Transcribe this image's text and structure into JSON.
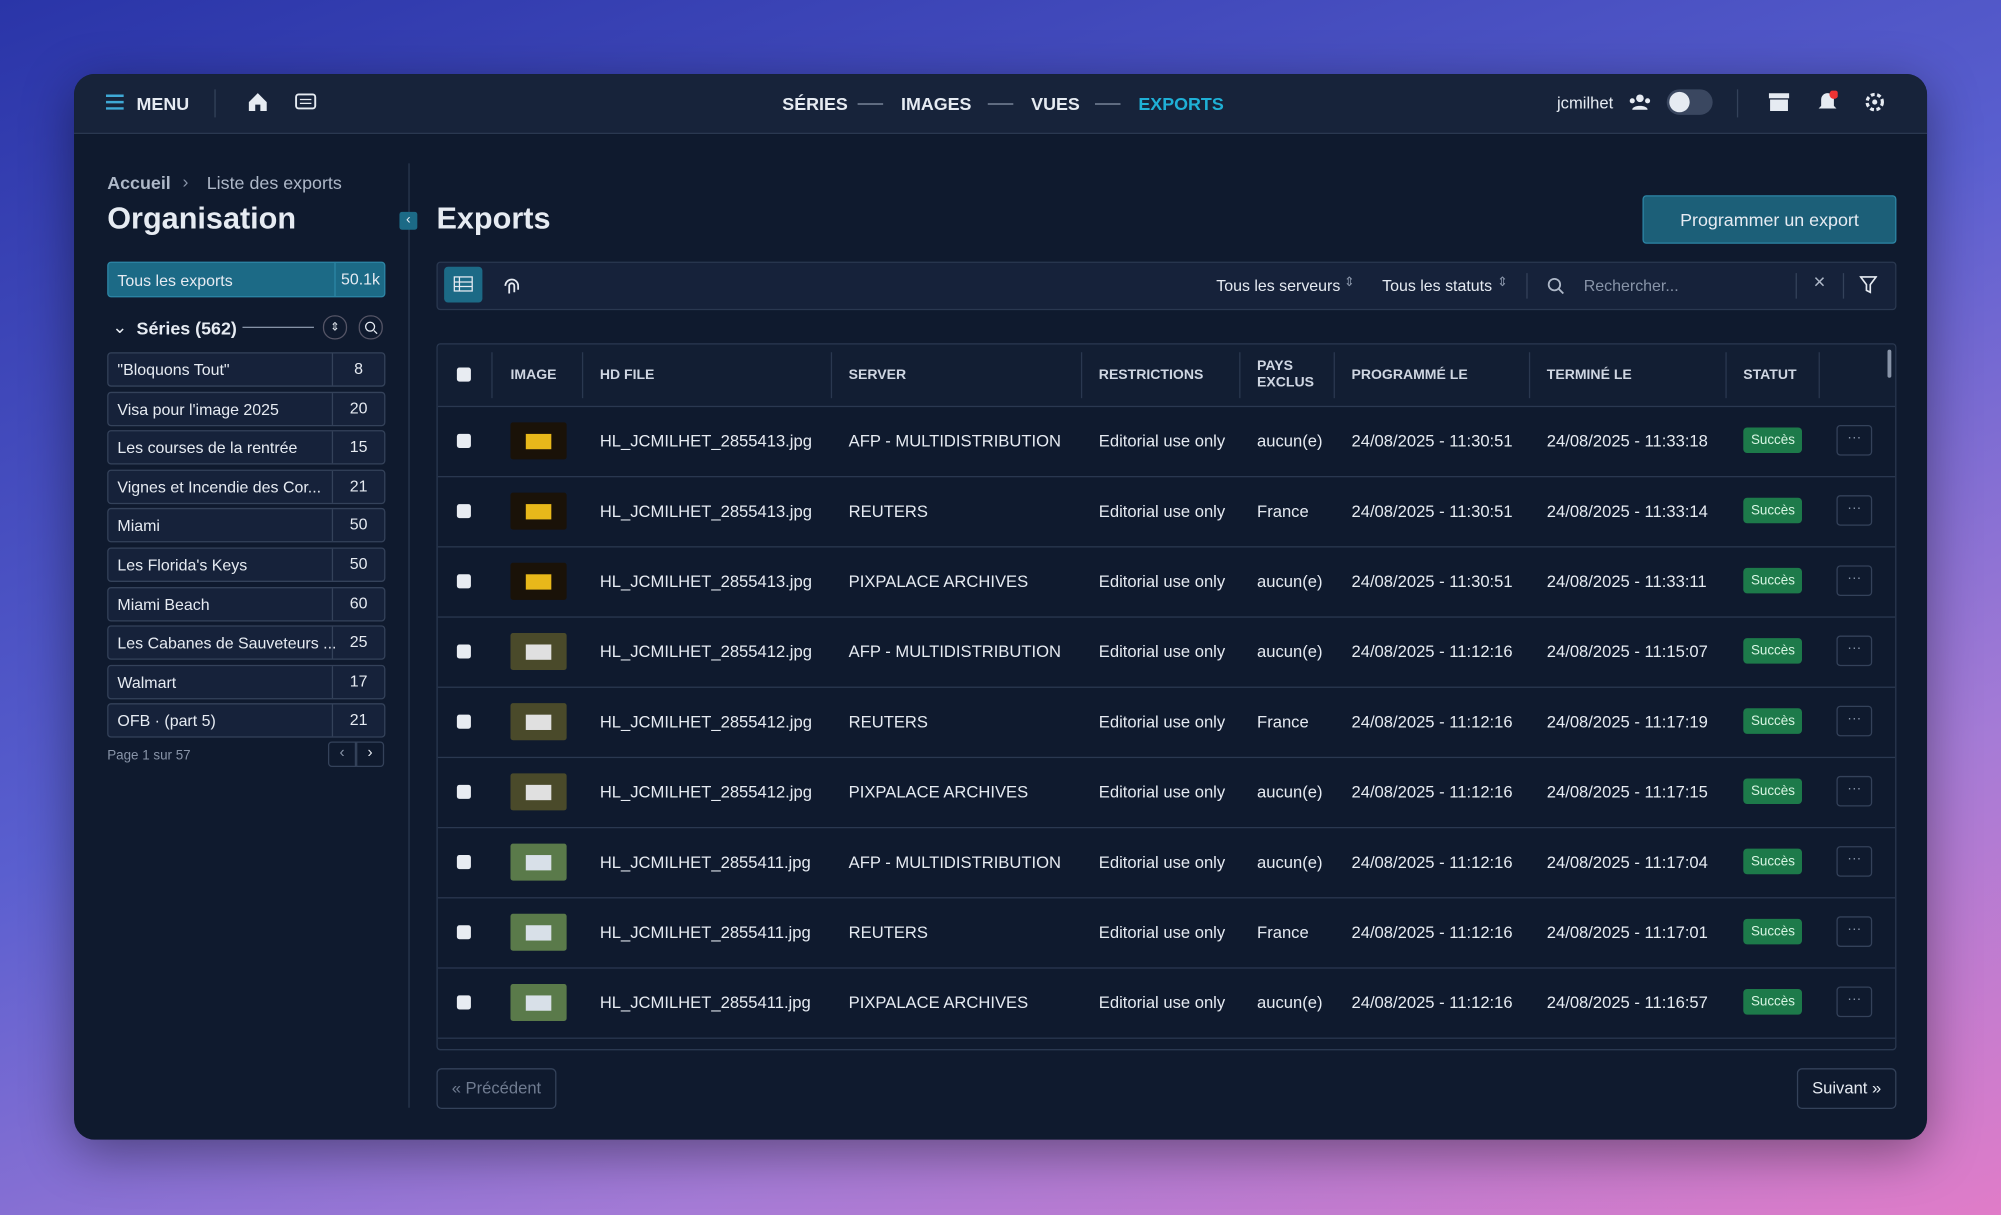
{
  "nav": {
    "menu": "MENU",
    "tabs": [
      "SÉRIES",
      "IMAGES",
      "VUES",
      "EXPORTS"
    ],
    "user": "jcmilhet"
  },
  "breadcrumb": [
    "Accueil",
    "Liste des exports"
  ],
  "sidebar": {
    "title": "Organisation",
    "all_exports": {
      "label": "Tous les exports",
      "count": "50.1k"
    },
    "series_header": "Séries (562)",
    "series": [
      {
        "name": "\"Bloquons Tout\"",
        "count": 8
      },
      {
        "name": "Visa pour l'image 2025",
        "count": 20
      },
      {
        "name": "Les courses de la rentrée",
        "count": 15
      },
      {
        "name": "Vignes et Incendie des Cor...",
        "count": 21
      },
      {
        "name": "Miami",
        "count": 50
      },
      {
        "name": "Les Florida's Keys",
        "count": 50
      },
      {
        "name": "Miami Beach",
        "count": 60
      },
      {
        "name": "Les Cabanes de Sauveteurs ...",
        "count": 25
      },
      {
        "name": "Walmart",
        "count": 17
      },
      {
        "name": "OFB · (part 5)",
        "count": 21
      }
    ],
    "pagination": "Page 1 sur 57"
  },
  "main": {
    "title": "Exports",
    "button": "Programmer un export",
    "filters": [
      "Tous les serveurs",
      "Tous les statuts"
    ],
    "search_placeholder": "Rechercher...",
    "columns": [
      "IMAGE",
      "HD FILE",
      "SERVER",
      "RESTRICTIONS",
      "PAYS EXCLUS",
      "PROGRAMMÉ LE",
      "TERMINÉ LE",
      "STATUT"
    ],
    "rows": [
      [
        "HL_JCMILHET_2855413.jpg",
        "AFP - MULTIDISTRIBUTION",
        "Editorial use only",
        "aucun(e)",
        "24/08/2025 - 11:30:51",
        "24/08/2025 - 11:33:18",
        "Succès"
      ],
      [
        "HL_JCMILHET_2855413.jpg",
        "REUTERS",
        "Editorial use only",
        "France",
        "24/08/2025 - 11:30:51",
        "24/08/2025 - 11:33:14",
        "Succès"
      ],
      [
        "HL_JCMILHET_2855413.jpg",
        "PIXPALACE ARCHIVES",
        "Editorial use only",
        "aucun(e)",
        "24/08/2025 - 11:30:51",
        "24/08/2025 - 11:33:11",
        "Succès"
      ],
      [
        "HL_JCMILHET_2855412.jpg",
        "AFP - MULTIDISTRIBUTION",
        "Editorial use only",
        "aucun(e)",
        "24/08/2025 - 11:12:16",
        "24/08/2025 - 11:15:07",
        "Succès"
      ],
      [
        "HL_JCMILHET_2855412.jpg",
        "REUTERS",
        "Editorial use only",
        "France",
        "24/08/2025 - 11:12:16",
        "24/08/2025 - 11:17:19",
        "Succès"
      ],
      [
        "HL_JCMILHET_2855412.jpg",
        "PIXPALACE ARCHIVES",
        "Editorial use only",
        "aucun(e)",
        "24/08/2025 - 11:12:16",
        "24/08/2025 - 11:17:15",
        "Succès"
      ],
      [
        "HL_JCMILHET_2855411.jpg",
        "AFP - MULTIDISTRIBUTION",
        "Editorial use only",
        "aucun(e)",
        "24/08/2025 - 11:12:16",
        "24/08/2025 - 11:17:04",
        "Succès"
      ],
      [
        "HL_JCMILHET_2855411.jpg",
        "REUTERS",
        "Editorial use only",
        "France",
        "24/08/2025 - 11:12:16",
        "24/08/2025 - 11:17:01",
        "Succès"
      ],
      [
        "HL_JCMILHET_2855411.jpg",
        "PIXPALACE ARCHIVES",
        "Editorial use only",
        "aucun(e)",
        "24/08/2025 - 11:12:16",
        "24/08/2025 - 11:16:57",
        "Succès"
      ]
    ],
    "prev": "« Précédent",
    "next": "Suivant »"
  }
}
